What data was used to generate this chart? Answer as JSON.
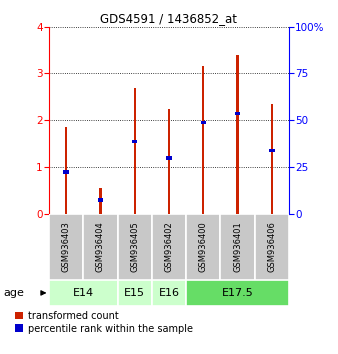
{
  "title": "GDS4591 / 1436852_at",
  "samples": [
    "GSM936403",
    "GSM936404",
    "GSM936405",
    "GSM936402",
    "GSM936400",
    "GSM936401",
    "GSM936406"
  ],
  "red_values": [
    1.85,
    0.55,
    2.7,
    2.25,
    3.15,
    3.4,
    2.35
  ],
  "blue_values": [
    0.9,
    0.3,
    1.55,
    1.2,
    1.95,
    2.15,
    1.35
  ],
  "age_groups": [
    {
      "label": "E14",
      "start": 0,
      "end": 2,
      "color": "#ccffcc"
    },
    {
      "label": "E15",
      "start": 2,
      "end": 3,
      "color": "#ccffcc"
    },
    {
      "label": "E16",
      "start": 3,
      "end": 4,
      "color": "#ccffcc"
    },
    {
      "label": "E17.5",
      "start": 4,
      "end": 7,
      "color": "#66dd66"
    }
  ],
  "ylim_left": [
    0,
    4
  ],
  "ylim_right": [
    0,
    100
  ],
  "yticks_left": [
    0,
    1,
    2,
    3,
    4
  ],
  "yticks_right": [
    0,
    25,
    50,
    75,
    100
  ],
  "ytick_labels_right": [
    "0",
    "25",
    "50",
    "75",
    "100%"
  ],
  "red_color": "#cc2200",
  "blue_color": "#0000cc",
  "label_red": "transformed count",
  "label_blue": "percentile rank within the sample",
  "red_bar_width": 0.07,
  "blue_bar_width": 0.16,
  "blue_bar_height": 0.07
}
